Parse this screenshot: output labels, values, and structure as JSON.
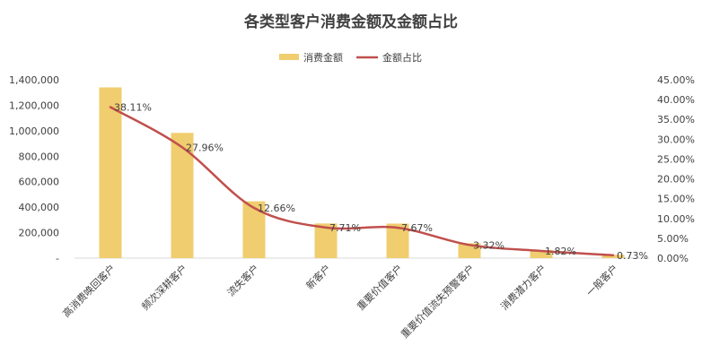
{
  "chart_data": {
    "type": "bar",
    "title": "各类型客户消费金额及金额占比",
    "categories": [
      "高消费唤回客户",
      "频次深耕客户",
      "流失客户",
      "新客户",
      "重要价值客户",
      "重要价值流失预警客户",
      "消费潜力客户",
      "一般客户"
    ],
    "series": [
      {
        "name": "消费金额",
        "type": "bar",
        "axis": "left",
        "color": "#F0CD6E",
        "values": [
          1340000,
          983000,
          446000,
          272000,
          271000,
          117000,
          64000,
          26000
        ]
      },
      {
        "name": "金额占比",
        "type": "line",
        "axis": "right",
        "color": "#C0504D",
        "values": [
          38.11,
          27.96,
          12.66,
          7.71,
          7.67,
          3.32,
          1.82,
          0.73
        ],
        "labels": [
          "38.11%",
          "27.96%",
          "12.66%",
          "7.71%",
          "7.67%",
          "3.32%",
          "1.82%",
          "0.73%"
        ]
      }
    ],
    "left_axis": {
      "min": 0,
      "max": 1400000,
      "step": 200000,
      "tick_labels": [
        "-",
        "200,000",
        "400,000",
        "600,000",
        "800,000",
        "1,000,000",
        "1,200,000",
        "1,400,000"
      ]
    },
    "right_axis": {
      "min": 0,
      "max": 45,
      "step": 5,
      "tick_labels": [
        "0.00%",
        "5.00%",
        "10.00%",
        "15.00%",
        "20.00%",
        "25.00%",
        "30.00%",
        "35.00%",
        "40.00%",
        "45.00%"
      ]
    },
    "legend": {
      "position": "top"
    },
    "grid": false
  }
}
